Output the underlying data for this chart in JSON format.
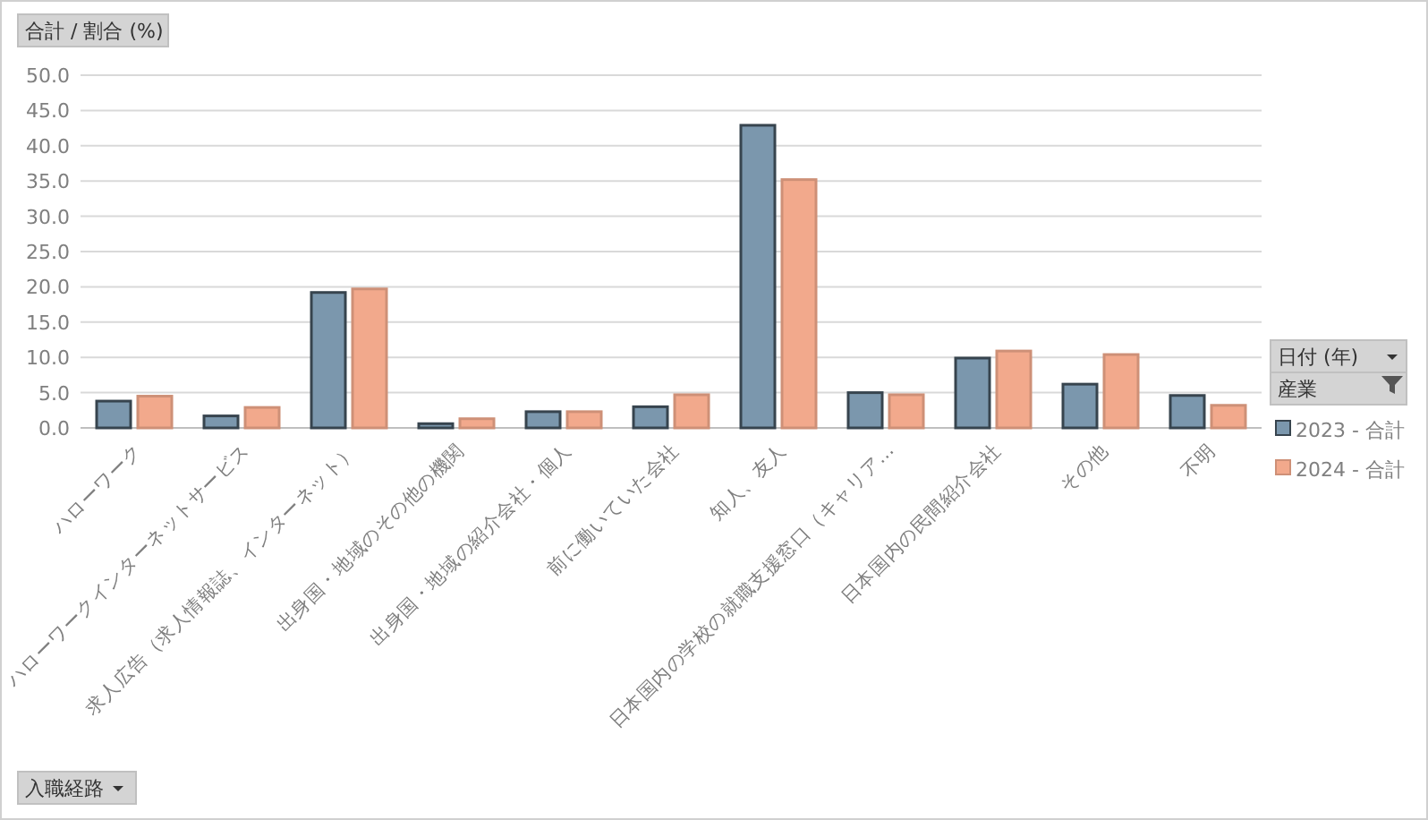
{
  "chart_data": {
    "type": "bar",
    "ylabel": "合計 / 割合 (%)",
    "xlabel": "入職経路",
    "legend_title": "日付 (年)",
    "annotations": [
      "産業"
    ],
    "categories": [
      "ハローワーク",
      "ハローワークインターネットサービス",
      "求人広告（求人情報誌、インターネット）",
      "出身国・地域のその他の機関",
      "出身国・地域の紹介会社・個人",
      "前に働いていた会社",
      "知人、友人",
      "日本国内の学校の就職支援窓口（キャリア…",
      "日本国内の民間紹介会社",
      "その他",
      "不明"
    ],
    "series": [
      {
        "name": "2023 - 合計",
        "color": "#7b97ad",
        "values": [
          3.8,
          1.7,
          19.2,
          0.6,
          2.3,
          3.0,
          42.9,
          5.0,
          9.9,
          6.2,
          4.6
        ]
      },
      {
        "name": "2024 - 合計",
        "color": "#f2a98c",
        "values": [
          4.5,
          2.9,
          19.7,
          1.3,
          2.3,
          4.7,
          35.2,
          4.7,
          10.9,
          10.4,
          3.2
        ]
      }
    ],
    "ylim": [
      0,
      50
    ],
    "yticks": [
      {
        "value": 0,
        "label": "0.0"
      },
      {
        "value": 5,
        "label": "5.0"
      },
      {
        "value": 10,
        "label": "10.0"
      },
      {
        "value": 15,
        "label": "15.0"
      },
      {
        "value": 20,
        "label": "20.0"
      },
      {
        "value": 25,
        "label": "25.0"
      },
      {
        "value": 30,
        "label": "30.0"
      },
      {
        "value": 35,
        "label": "35.0"
      },
      {
        "value": 40,
        "label": "40.0"
      },
      {
        "value": 45,
        "label": "45.0"
      },
      {
        "value": 50,
        "label": "50.0"
      }
    ],
    "grid": true,
    "legend": "right"
  }
}
